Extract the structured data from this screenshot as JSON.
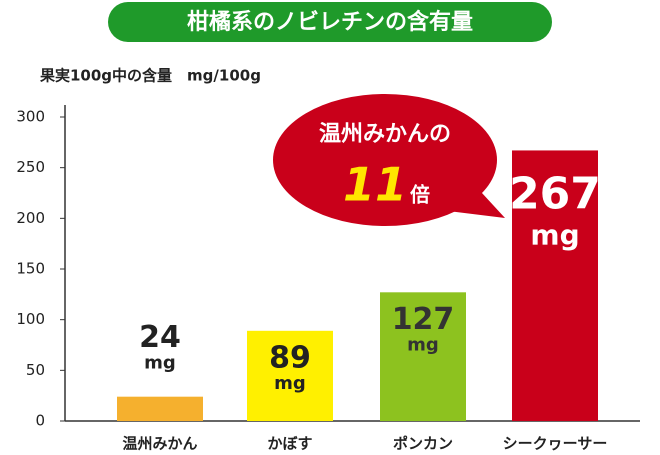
{
  "chart_data": {
    "type": "bar",
    "title": "柑橘系のノビレチンの含有量",
    "subtitle": "果実100g中の含量　mg/100g",
    "categories": [
      "温州みかん",
      "かぼす",
      "ポンカン",
      "シークヮーサー"
    ],
    "values": [
      24,
      89,
      127,
      267
    ],
    "colors": [
      "#f5b02e",
      "#fff000",
      "#8dc21f",
      "#c9001a"
    ],
    "label_colors": [
      "#222222",
      "#222222",
      "#333333",
      "#ffffff"
    ],
    "value_unit": "mg",
    "ylim": [
      0,
      300
    ],
    "yticks": [
      0,
      50,
      100,
      150,
      200,
      250,
      300
    ],
    "annotation": {
      "line1": "温州みかんの",
      "number": "11",
      "suffix": "倍"
    }
  }
}
